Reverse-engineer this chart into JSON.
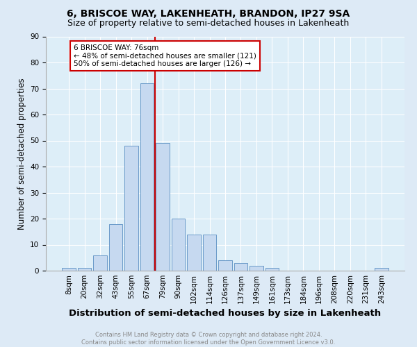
{
  "title": "6, BRISCOE WAY, LAKENHEATH, BRANDON, IP27 9SA",
  "subtitle": "Size of property relative to semi-detached houses in Lakenheath",
  "xlabel": "Distribution of semi-detached houses by size in Lakenheath",
  "ylabel": "Number of semi-detached properties",
  "footnote": "Contains HM Land Registry data © Crown copyright and database right 2024.\nContains public sector information licensed under the Open Government Licence v3.0.",
  "bar_labels": [
    "8sqm",
    "20sqm",
    "32sqm",
    "43sqm",
    "55sqm",
    "67sqm",
    "79sqm",
    "90sqm",
    "102sqm",
    "114sqm",
    "126sqm",
    "137sqm",
    "149sqm",
    "161sqm",
    "173sqm",
    "184sqm",
    "196sqm",
    "208sqm",
    "220sqm",
    "231sqm",
    "243sqm"
  ],
  "bar_values": [
    1,
    1,
    6,
    18,
    48,
    72,
    49,
    20,
    14,
    14,
    4,
    3,
    2,
    1,
    0,
    0,
    0,
    0,
    0,
    0,
    1
  ],
  "bar_color": "#c6d9f0",
  "bar_edge_color": "#5a8fc2",
  "vline_color": "#cc0000",
  "vline_x_index": 5.5,
  "property_label": "6 BRISCOE WAY: 76sqm",
  "annotation_smaller": "← 48% of semi-detached houses are smaller (121)",
  "annotation_larger": "50% of semi-detached houses are larger (126) →",
  "annotation_box_facecolor": "#ffffff",
  "annotation_box_edgecolor": "#cc0000",
  "ylim": [
    0,
    90
  ],
  "yticks": [
    0,
    10,
    20,
    30,
    40,
    50,
    60,
    70,
    80,
    90
  ],
  "background_color": "#ddeaf6",
  "axes_background": "#ddeef8",
  "title_fontsize": 10,
  "subtitle_fontsize": 9,
  "xlabel_fontsize": 9.5,
  "ylabel_fontsize": 8.5,
  "tick_fontsize": 7.5,
  "annot_fontsize": 7.5,
  "footnote_fontsize": 6,
  "footnote_color": "#888888"
}
